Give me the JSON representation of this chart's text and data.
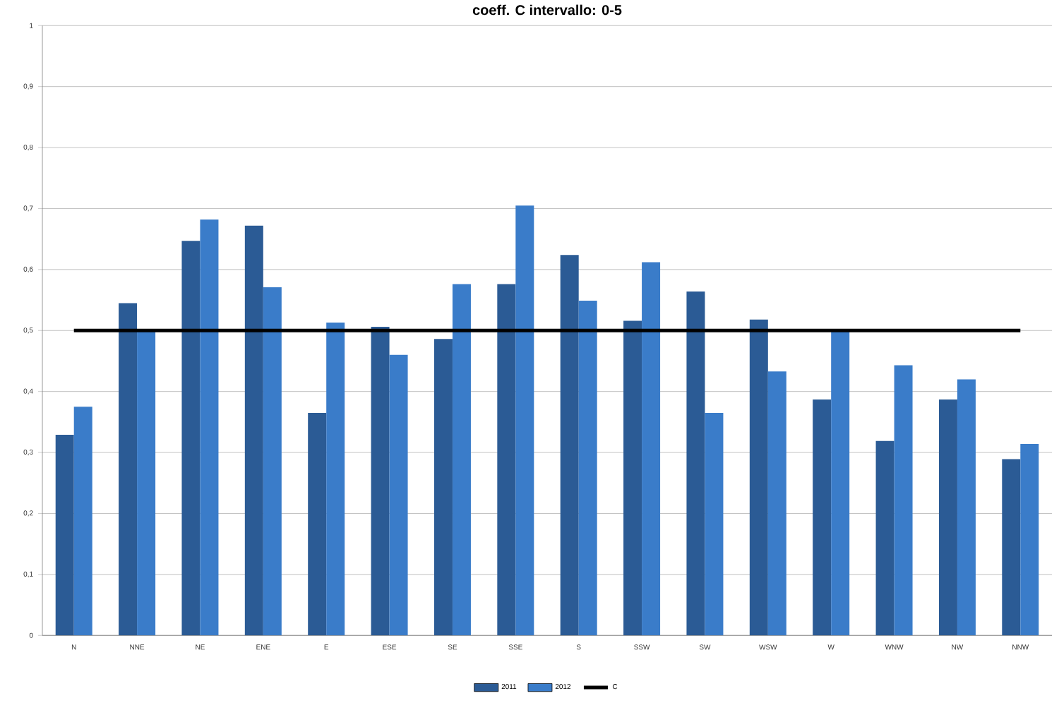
{
  "chart_data": {
    "type": "bar",
    "title": "coeff. C intervallo: 0-5",
    "categories": [
      "N",
      "NNE",
      "NE",
      "ENE",
      "E",
      "ESE",
      "SE",
      "SSE",
      "S",
      "SSW",
      "SW",
      "WSW",
      "W",
      "WNW",
      "NW",
      "NNW"
    ],
    "series": [
      {
        "name": "2011",
        "color": "#2b5b95",
        "values": [
          0.329,
          0.545,
          0.647,
          0.672,
          0.365,
          0.506,
          0.486,
          0.576,
          0.624,
          0.516,
          0.564,
          0.518,
          0.387,
          0.319,
          0.387,
          0.289
        ]
      },
      {
        "name": "2012",
        "color": "#3a7cc9",
        "values": [
          0.375,
          0.499,
          0.682,
          0.571,
          0.513,
          0.46,
          0.576,
          0.705,
          0.549,
          0.612,
          0.365,
          0.433,
          0.499,
          0.443,
          0.42,
          0.314
        ]
      },
      {
        "name": "C",
        "type": "line",
        "color": "#000000",
        "values": [
          0.5,
          0.5,
          0.5,
          0.5,
          0.5,
          0.5,
          0.5,
          0.5,
          0.5,
          0.5,
          0.5,
          0.5,
          0.5,
          0.5,
          0.5,
          0.5
        ]
      }
    ],
    "ylim": [
      0,
      1
    ],
    "yticks": [
      0,
      {
        "value": 0.1,
        "label": "0,1"
      },
      {
        "value": 0.2,
        "label": "0,2"
      },
      {
        "value": 0.3,
        "label": "0,3"
      },
      {
        "value": 0.4,
        "label": "0,4"
      },
      {
        "value": 0.5,
        "label": "0,5"
      },
      {
        "value": 0.6,
        "label": "0,6"
      },
      {
        "value": 0.7,
        "label": "0,7"
      },
      {
        "value": 0.8,
        "label": "0,8"
      },
      {
        "value": 0.9,
        "label": "0,9"
      },
      1
    ],
    "grid": "y",
    "legend": "bottom"
  }
}
